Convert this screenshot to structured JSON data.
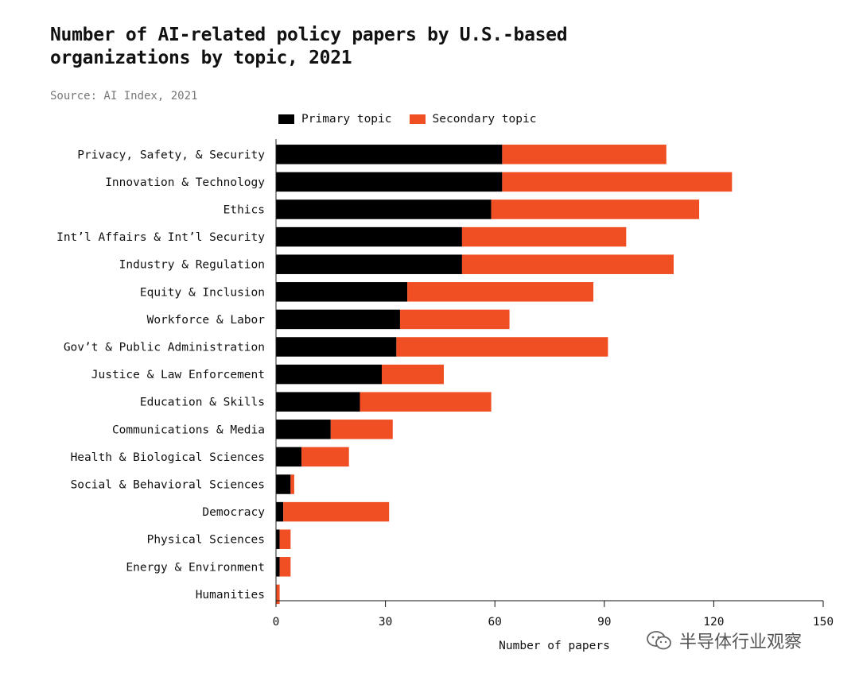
{
  "title_line1": "Number of AI-related policy papers by U.S.-based",
  "title_line2": "organizations by topic, 2021",
  "source": "Source: AI Index, 2021",
  "colors": {
    "primary": "#000000",
    "secondary": "#f04e23",
    "axis": "#111111"
  },
  "watermark": {
    "text": "半导体行业观察",
    "icon": "wechat-icon"
  },
  "chart_data": {
    "type": "bar",
    "orientation": "horizontal",
    "stacked": true,
    "categories": [
      "Privacy, Safety, & Security",
      "Innovation & Technology",
      "Ethics",
      "Int’l Affairs & Int’l Security",
      "Industry & Regulation",
      "Equity & Inclusion",
      "Workforce & Labor",
      "Gov’t & Public Administration",
      "Justice & Law Enforcement",
      "Education & Skills",
      "Communications & Media",
      "Health & Biological Sciences",
      "Social & Behavioral Sciences",
      "Democracy",
      "Physical Sciences",
      "Energy & Environment",
      "Humanities"
    ],
    "series": [
      {
        "name": "Primary topic",
        "color": "#000000",
        "values": [
          62,
          62,
          59,
          51,
          51,
          36,
          34,
          33,
          29,
          23,
          15,
          7,
          4,
          2,
          1,
          1,
          0
        ]
      },
      {
        "name": "Secondary topic",
        "color": "#f04e23",
        "values": [
          45,
          63,
          57,
          45,
          58,
          51,
          30,
          58,
          17,
          36,
          17,
          13,
          1,
          29,
          3,
          3,
          1
        ]
      }
    ],
    "xlabel": "Number of papers",
    "xlim": [
      0,
      150
    ],
    "xticks": [
      0,
      30,
      60,
      90,
      120,
      150
    ],
    "grid": false,
    "legend_position": "top"
  }
}
